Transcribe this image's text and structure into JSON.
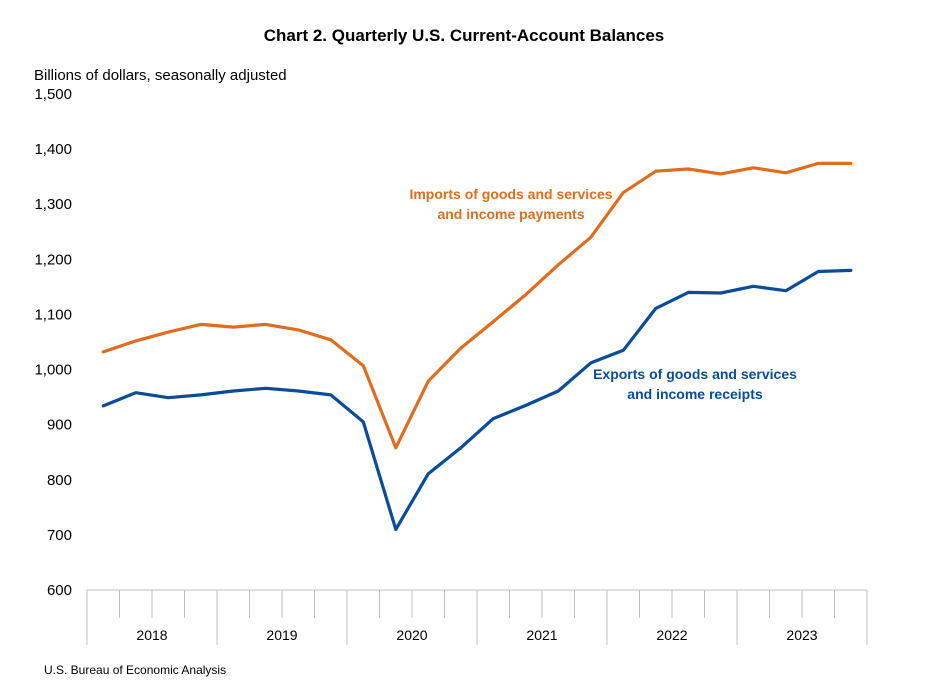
{
  "chart_data": {
    "type": "line",
    "title": "Chart 2. Quarterly U.S. Current-Account Balances",
    "ylabel": "Billions of dollars, seasonally adjusted",
    "xlabel": "",
    "ylim": [
      600,
      1500
    ],
    "yticks": [
      "600",
      "700",
      "800",
      "900",
      "1,000",
      "1,100",
      "1,200",
      "1,300",
      "1,400",
      "1,500"
    ],
    "ytick_values": [
      600,
      700,
      800,
      900,
      1000,
      1100,
      1200,
      1300,
      1400,
      1500
    ],
    "x": [
      "2018Q1",
      "2018Q2",
      "2018Q3",
      "2018Q4",
      "2019Q1",
      "2019Q2",
      "2019Q3",
      "2019Q4",
      "2020Q1",
      "2020Q2",
      "2020Q3",
      "2020Q4",
      "2021Q1",
      "2021Q2",
      "2021Q3",
      "2021Q4",
      "2022Q1",
      "2022Q2",
      "2022Q3",
      "2022Q4",
      "2023Q1",
      "2023Q2",
      "2023Q3",
      "2023Q4"
    ],
    "years": [
      "2018",
      "2019",
      "2020",
      "2021",
      "2022",
      "2023"
    ],
    "grid": false,
    "series": [
      {
        "name": "Imports of goods and services and income payments",
        "label_lines": [
          "Imports of goods and services",
          "and income payments"
        ],
        "color": "#E06C1F",
        "values": [
          1032,
          1052,
          1068,
          1082,
          1077,
          1082,
          1072,
          1054,
          1007,
          858,
          979,
          1039,
          1087,
          1136,
          1190,
          1240,
          1321,
          1360,
          1364,
          1355,
          1366,
          1357,
          1374,
          1374
        ]
      },
      {
        "name": "Exports of goods and services and income receipts",
        "label_lines": [
          "Exports of goods and services",
          "and income receipts"
        ],
        "color": "#0A4C97",
        "values": [
          934,
          958,
          949,
          954,
          961,
          966,
          961,
          954,
          905,
          710,
          811,
          858,
          911,
          935,
          961,
          1012,
          1035,
          1111,
          1140,
          1139,
          1151,
          1143,
          1178,
          1180
        ]
      }
    ]
  },
  "source": "U.S. Bureau of Economic Analysis"
}
